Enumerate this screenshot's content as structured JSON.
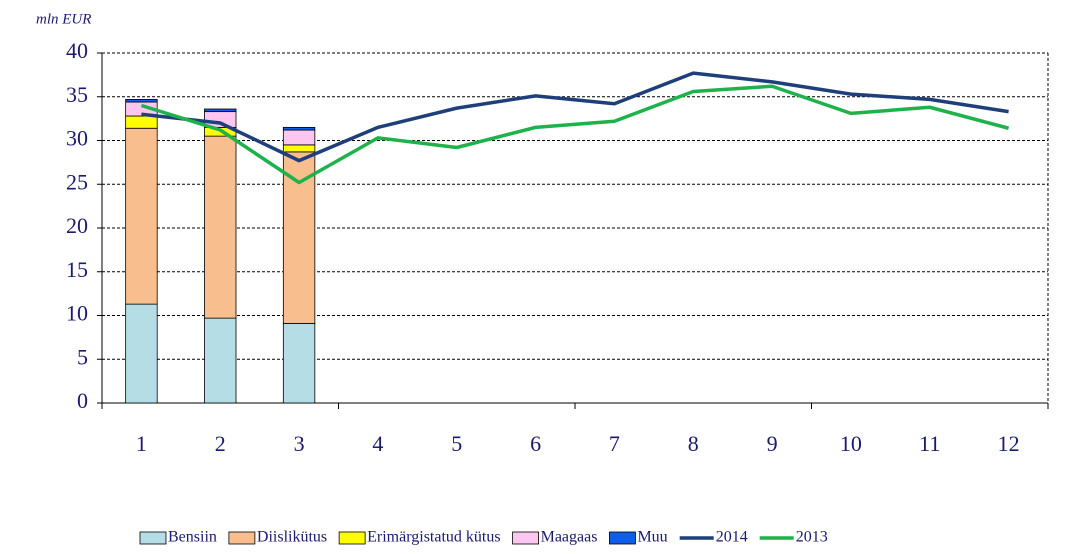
{
  "chart_data": {
    "type": "bar",
    "stacked": true,
    "y_label": "mln EUR",
    "categories": [
      "1",
      "2",
      "3",
      "4",
      "5",
      "6",
      "7",
      "8",
      "9",
      "10",
      "11",
      "12"
    ],
    "ylim": [
      0,
      40
    ],
    "yticks": [
      0,
      5,
      10,
      15,
      20,
      25,
      30,
      35,
      40
    ],
    "grid": true,
    "legend": "bottom",
    "series": [
      {
        "name": "Bensiin",
        "type": "bar",
        "color": "#b4dde6",
        "values": [
          11.3,
          9.7,
          9.1,
          null,
          null,
          null,
          null,
          null,
          null,
          null,
          null,
          null
        ]
      },
      {
        "name": "Diislikütus",
        "type": "bar",
        "color": "#f9be8e",
        "values": [
          20.1,
          20.8,
          19.6,
          null,
          null,
          null,
          null,
          null,
          null,
          null,
          null,
          null
        ]
      },
      {
        "name": "Erimärgistatud kütus",
        "type": "bar",
        "color": "#ffff00",
        "values": [
          1.4,
          1.0,
          0.8,
          null,
          null,
          null,
          null,
          null,
          null,
          null,
          null,
          null
        ]
      },
      {
        "name": "Maagaas",
        "type": "bar",
        "color": "#fcc6f0",
        "values": [
          1.6,
          1.8,
          1.7,
          null,
          null,
          null,
          null,
          null,
          null,
          null,
          null,
          null
        ]
      },
      {
        "name": "Muu",
        "type": "bar",
        "color": "#0f5ee8",
        "values": [
          0.3,
          0.3,
          0.3,
          null,
          null,
          null,
          null,
          null,
          null,
          null,
          null,
          null
        ]
      },
      {
        "name": "2014",
        "type": "line",
        "color": "#1f3f7a",
        "values": [
          33.0,
          32.0,
          27.7,
          31.5,
          33.7,
          35.1,
          34.2,
          37.7,
          36.7,
          35.3,
          34.7,
          33.3
        ]
      },
      {
        "name": "2013",
        "type": "line",
        "color": "#1db24a",
        "values": [
          34.0,
          31.2,
          25.2,
          30.3,
          29.2,
          31.5,
          32.2,
          35.6,
          36.2,
          33.1,
          33.8,
          31.4
        ]
      }
    ]
  }
}
